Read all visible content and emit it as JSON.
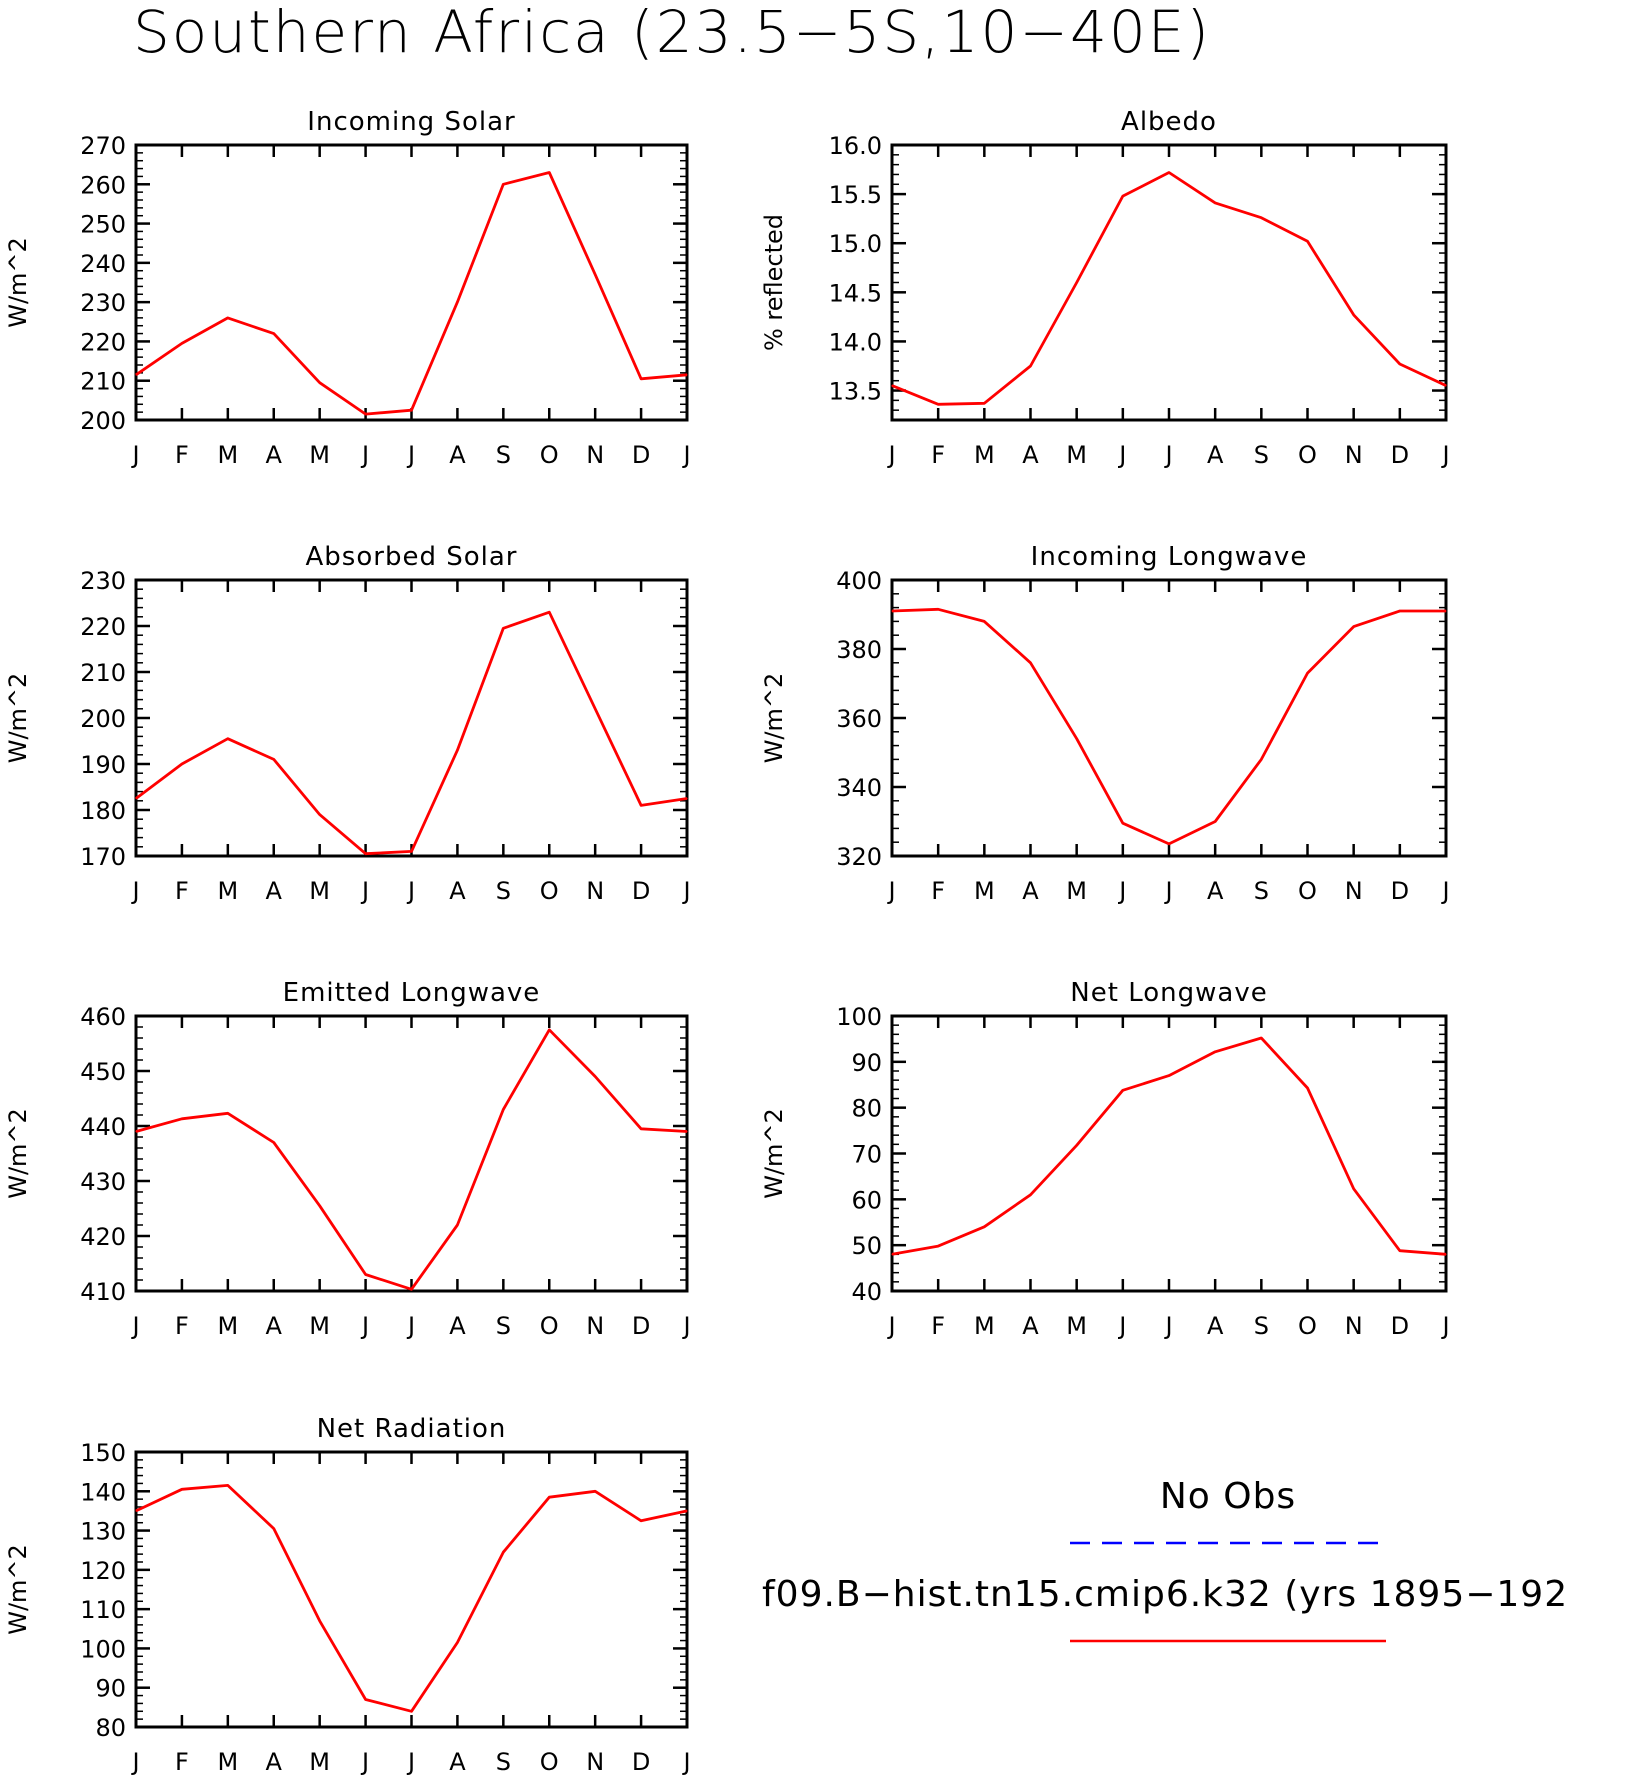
{
  "figure": {
    "title": "Southern Africa (23.5−5S,10−40E)"
  },
  "colors": {
    "model": "#ff0000",
    "obs": "#0000ff",
    "axes": "#000000"
  },
  "legend": {
    "obs_label": "No Obs",
    "model_label": "f09.B−hist.tn15.cmip6.k32 (yrs 1895−192"
  },
  "chart_data": [
    {
      "type": "line",
      "title": "Incoming Solar",
      "ylabel": "W/m^2",
      "ylim": [
        200,
        270
      ],
      "yticks": [
        200,
        210,
        220,
        230,
        240,
        250,
        260,
        270
      ],
      "ytick_labels": [
        "200",
        "210",
        "220",
        "230",
        "240",
        "250",
        "260",
        "270"
      ],
      "categories": [
        "J",
        "F",
        "M",
        "A",
        "M",
        "J",
        "J",
        "A",
        "S",
        "O",
        "N",
        "D",
        "J"
      ],
      "series": [
        {
          "values": [
            211.5,
            219.5,
            226,
            222,
            209.5,
            201.5,
            202.5,
            230,
            260,
            263,
            237,
            210.5,
            211.5
          ]
        }
      ]
    },
    {
      "type": "line",
      "title": "Albedo",
      "ylabel": "% reflected",
      "ylim": [
        13.2,
        16.0
      ],
      "yticks": [
        13.5,
        14.0,
        14.5,
        15.0,
        15.5,
        16.0
      ],
      "ytick_labels": [
        "13.5",
        "14.0",
        "14.5",
        "15.0",
        "15.5",
        "16.0"
      ],
      "categories": [
        "J",
        "F",
        "M",
        "A",
        "M",
        "J",
        "J",
        "A",
        "S",
        "O",
        "N",
        "D",
        "J"
      ],
      "series": [
        {
          "values": [
            13.55,
            13.36,
            13.37,
            13.75,
            14.6,
            15.48,
            15.72,
            15.41,
            15.26,
            15.02,
            14.27,
            13.77,
            13.55
          ]
        }
      ]
    },
    {
      "type": "line",
      "title": "Absorbed Solar",
      "ylabel": "W/m^2",
      "ylim": [
        170,
        230
      ],
      "yticks": [
        170,
        180,
        190,
        200,
        210,
        220,
        230
      ],
      "ytick_labels": [
        "170",
        "180",
        "190",
        "200",
        "210",
        "220",
        "230"
      ],
      "categories": [
        "J",
        "F",
        "M",
        "A",
        "M",
        "J",
        "J",
        "A",
        "S",
        "O",
        "N",
        "D",
        "J"
      ],
      "series": [
        {
          "values": [
            182.5,
            190,
            195.5,
            191,
            179,
            170.5,
            171,
            193,
            219.5,
            223,
            202,
            181,
            182.5
          ]
        }
      ]
    },
    {
      "type": "line",
      "title": "Incoming Longwave",
      "ylabel": "W/m^2",
      "ylim": [
        320,
        400
      ],
      "yticks": [
        320,
        340,
        360,
        380,
        400
      ],
      "ytick_labels": [
        "320",
        "340",
        "360",
        "380",
        "400"
      ],
      "categories": [
        "J",
        "F",
        "M",
        "A",
        "M",
        "J",
        "J",
        "A",
        "S",
        "O",
        "N",
        "D",
        "J"
      ],
      "series": [
        {
          "values": [
            391,
            391.5,
            388,
            376,
            354,
            329.5,
            323.5,
            330,
            348,
            373,
            386.5,
            391,
            391
          ]
        }
      ]
    },
    {
      "type": "line",
      "title": "Emitted Longwave",
      "ylabel": "W/m^2",
      "ylim": [
        410,
        460
      ],
      "yticks": [
        410,
        420,
        430,
        440,
        450,
        460
      ],
      "ytick_labels": [
        "410",
        "420",
        "430",
        "440",
        "450",
        "460"
      ],
      "categories": [
        "J",
        "F",
        "M",
        "A",
        "M",
        "J",
        "J",
        "A",
        "S",
        "O",
        "N",
        "D",
        "J"
      ],
      "series": [
        {
          "values": [
            439,
            441.3,
            442.3,
            437,
            425.5,
            413,
            410.3,
            422,
            443,
            457.5,
            449,
            439.5,
            439
          ]
        }
      ]
    },
    {
      "type": "line",
      "title": "Net Longwave",
      "ylabel": "W/m^2",
      "ylim": [
        40,
        100
      ],
      "yticks": [
        40,
        50,
        60,
        70,
        80,
        90,
        100
      ],
      "ytick_labels": [
        "40",
        "50",
        "60",
        "70",
        "80",
        "90",
        "100"
      ],
      "categories": [
        "J",
        "F",
        "M",
        "A",
        "M",
        "J",
        "J",
        "A",
        "S",
        "O",
        "N",
        "D",
        "J"
      ],
      "series": [
        {
          "values": [
            48,
            49.8,
            54,
            61,
            71.8,
            83.8,
            87,
            92.2,
            95.2,
            84.3,
            62.3,
            48.8,
            48
          ]
        }
      ]
    },
    {
      "type": "line",
      "title": "Net Radiation",
      "ylabel": "W/m^2",
      "ylim": [
        80,
        150
      ],
      "yticks": [
        80,
        90,
        100,
        110,
        120,
        130,
        140,
        150
      ],
      "ytick_labels": [
        "80",
        "90",
        "100",
        "110",
        "120",
        "130",
        "140",
        "150"
      ],
      "categories": [
        "J",
        "F",
        "M",
        "A",
        "M",
        "J",
        "J",
        "A",
        "S",
        "O",
        "N",
        "D",
        "J"
      ],
      "series": [
        {
          "values": [
            135,
            140.5,
            141.5,
            130.5,
            107,
            87,
            84,
            101.5,
            124.5,
            138.5,
            140,
            132.5,
            135
          ]
        }
      ]
    }
  ]
}
